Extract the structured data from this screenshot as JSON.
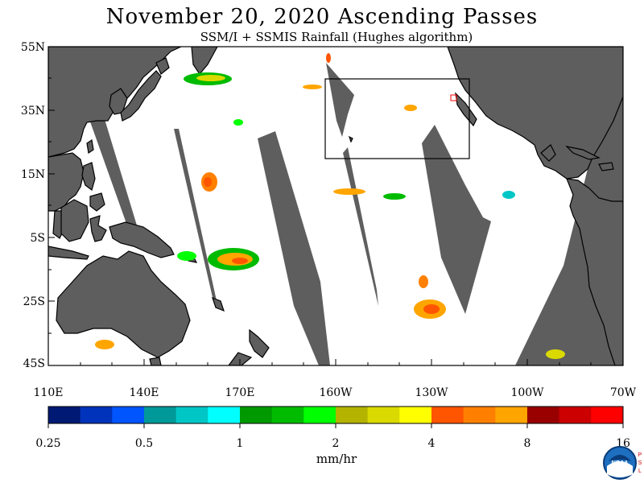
{
  "title": "November 20, 2020  Ascending Passes",
  "subtitle": "SSM/I + SSMIS Rainfall (Hughes algorithm)",
  "map": {
    "lat_labels": [
      "55N",
      "35N",
      "15N",
      "5S",
      "25S",
      "45S"
    ],
    "lon_labels": [
      "110E",
      "140E",
      "170E",
      "160W",
      "130W",
      "100W",
      "70W"
    ],
    "colors": {
      "land": "#5e5e5e",
      "no_data_swath_gap": "#5e5e5e",
      "ocean": "#ffffff"
    }
  },
  "colorbar": {
    "colors": [
      "#001a73",
      "#0033bb",
      "#0055ff",
      "#009999",
      "#00c6c6",
      "#00ffff",
      "#009900",
      "#00bb00",
      "#00ff00",
      "#b3b300",
      "#dada00",
      "#ffff00",
      "#ff5500",
      "#ff8000",
      "#ffa500",
      "#990000",
      "#cc0000",
      "#ff0000"
    ],
    "labels": [
      "0.25",
      "0.5",
      "1",
      "2",
      "4",
      "8",
      "16"
    ],
    "units": "mm/hr"
  },
  "logo": {
    "name": "NOAA",
    "side_text": "PSL"
  }
}
